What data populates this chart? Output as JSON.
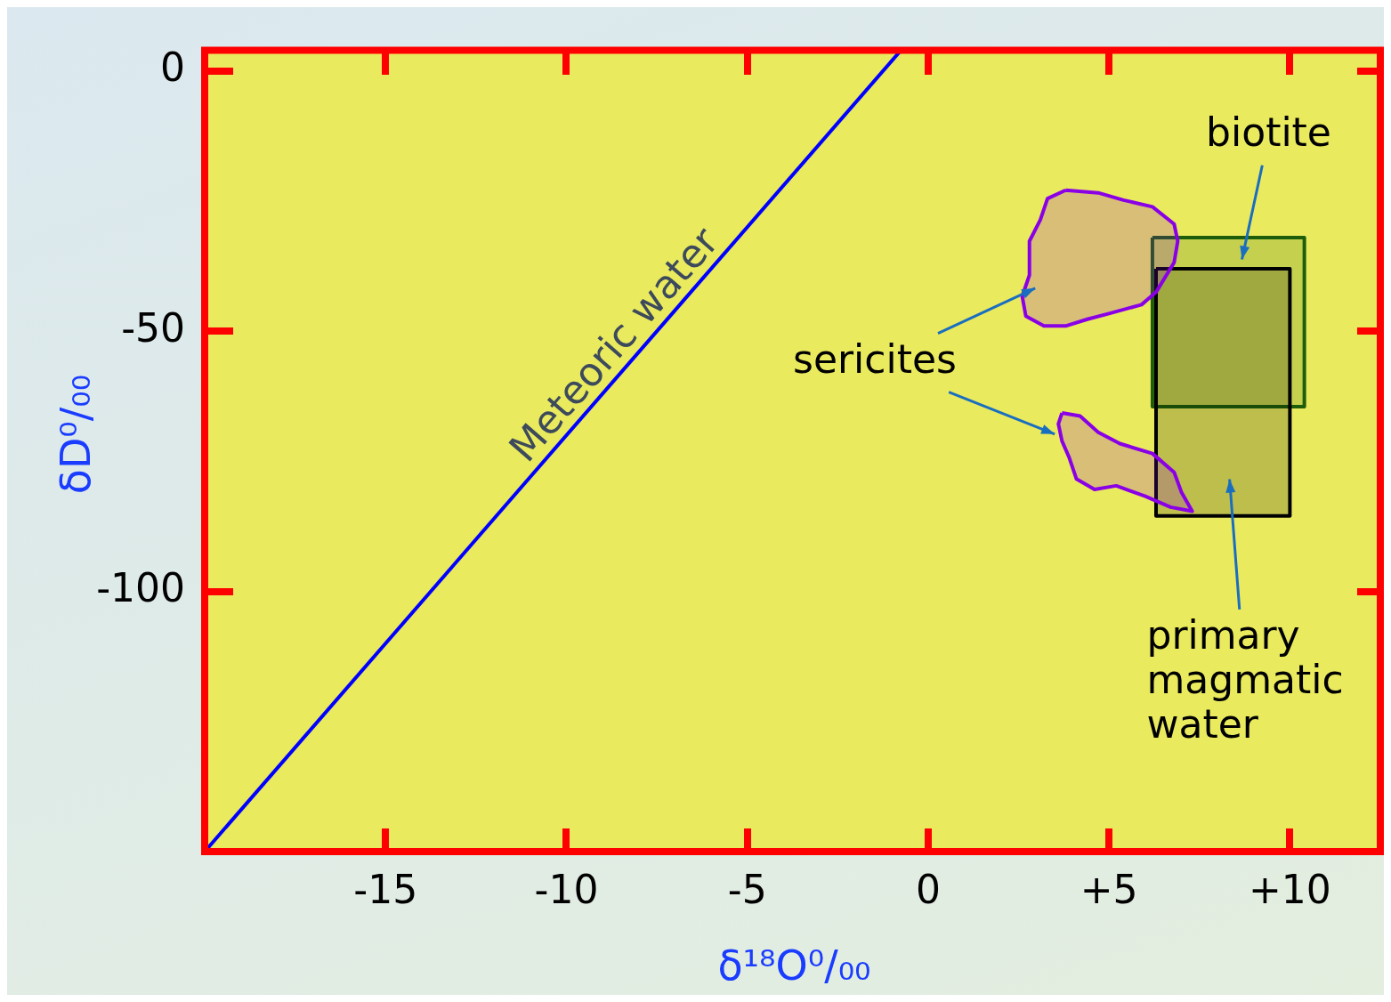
{
  "chart_data": {
    "type": "line",
    "xlabel": "δ¹⁸O⁰/₀₀",
    "ylabel": "δD⁰/₀₀",
    "xlim": [
      -20,
      12.5
    ],
    "ylim": [
      -150,
      4
    ],
    "xticks": [
      -15,
      -10,
      -5,
      0,
      {
        "value": 5,
        "label": "+5"
      },
      {
        "value": 10,
        "label": "+10"
      }
    ],
    "yticks": [
      -100,
      -50,
      0
    ],
    "grid": false,
    "legend": false,
    "marker": "none",
    "line_style": "solid",
    "series": [
      {
        "color": "#0000ff",
        "x": [
          -20,
          -0.75
        ],
        "values": [
          -150,
          4
        ]
      },
      {
        "type": "area",
        "color": "#8a00e6",
        "x": [
          3.8,
          4.7,
          5.4,
          6.2,
          6.8,
          6.9,
          6.8,
          6.3,
          5.9,
          5.0,
          4.4,
          3.8,
          3.2,
          2.7,
          2.6,
          2.8,
          2.8,
          3.1,
          3.3,
          3.8
        ],
        "values": [
          -22.9,
          -23.4,
          -24.8,
          -26.1,
          -29.4,
          -32.7,
          -36.8,
          -42.5,
          -44.9,
          -46.6,
          -47.7,
          -49.0,
          -49.0,
          -47.1,
          -43.3,
          -39.2,
          -32.7,
          -28.6,
          -24.5,
          -22.9
        ]
      },
      {
        "type": "area",
        "color": "#8a00e6",
        "x": [
          3.7,
          4.2,
          4.7,
          5.3,
          6.2,
          6.8,
          7.0,
          7.3,
          6.7,
          6.0,
          5.2,
          4.6,
          4.1,
          3.9,
          3.7,
          3.6,
          3.7
        ],
        "values": [
          -65.7,
          -66.3,
          -69.4,
          -71.6,
          -73.5,
          -77.1,
          -80.9,
          -84.6,
          -83.8,
          -81.7,
          -79.7,
          -80.4,
          -78.4,
          -74.3,
          -71.1,
          -67.8,
          -65.7
        ]
      },
      {
        "type": "area",
        "color": "#000000",
        "x": [
          6.3,
          10,
          10,
          6.3,
          6.3
        ],
        "values": [
          -38,
          -38,
          -85.5,
          -85.5,
          -38
        ]
      },
      {
        "type": "area",
        "color": "#1e5e0a",
        "x": [
          6.2,
          10.4,
          10.4,
          6.2,
          6.2
        ],
        "values": [
          -32,
          -32,
          -64.5,
          -64.5,
          -32
        ]
      }
    ],
    "annotations": [
      "Meteoric water",
      "biotite",
      "sericites",
      "primary\nmagmatic\nwater"
    ]
  }
}
